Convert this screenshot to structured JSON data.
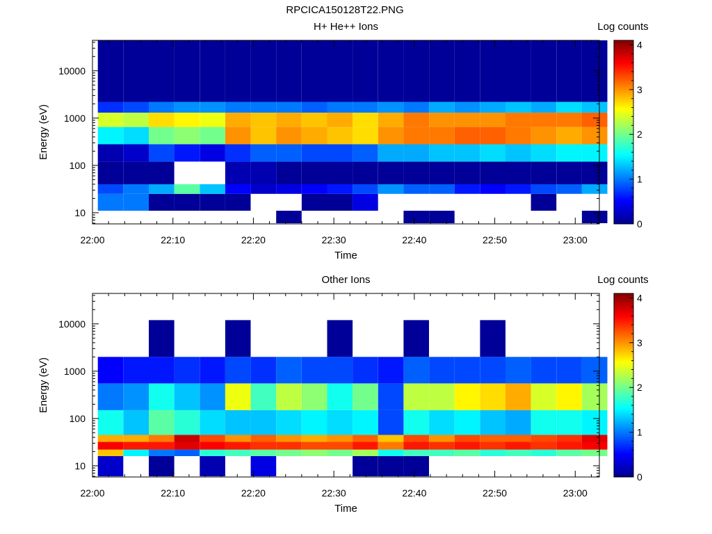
{
  "figure_title": "RPCICA150128T22.PNG",
  "chart_data": [
    {
      "type": "heatmap",
      "title": "H+ He++ Ions",
      "xlabel": "Time",
      "ylabel": "Energy (eV)",
      "colorbar_label": "Log counts",
      "colorbar_ticks": [
        "0",
        "1",
        "2",
        "3",
        "4"
      ],
      "colorbar_range": [
        0,
        4.1
      ],
      "x_ticks": [
        "22:00",
        "22:10",
        "22:20",
        "22:30",
        "22:40",
        "22:50",
        "23:00"
      ],
      "x_range_minutes": [
        0,
        63
      ],
      "y_scale": "log",
      "y_ticks": [
        "10",
        "100",
        "1000",
        "10000"
      ],
      "y_range": [
        5.8,
        44000
      ],
      "time_bins": [
        "22:02:15",
        "22:05:25",
        "22:08:35",
        "22:11:45",
        "22:14:55",
        "22:18:05",
        "22:21:15",
        "22:24:25",
        "22:27:35",
        "22:30:45",
        "22:33:55",
        "22:37:05",
        "22:40:15",
        "22:43:25",
        "22:46:35",
        "22:49:45",
        "22:52:55",
        "22:56:05",
        "22:59:15",
        "23:02:25"
      ],
      "energy_bands_eV": [
        {
          "low": 6,
          "high": 11,
          "values": [
            null,
            null,
            null,
            null,
            null,
            null,
            null,
            0.1,
            null,
            null,
            null,
            null,
            0.1,
            0.1,
            null,
            null,
            null,
            null,
            null,
            0.1
          ]
        },
        {
          "low": 11,
          "high": 25,
          "values": [
            1.0,
            1.0,
            0.1,
            0.1,
            0.1,
            0.1,
            null,
            null,
            0.1,
            0.1,
            0.4,
            null,
            null,
            null,
            null,
            null,
            null,
            0.1,
            null,
            null
          ]
        },
        {
          "low": 25,
          "high": 40,
          "values": [
            0.8,
            1.0,
            1.2,
            1.9,
            1.3,
            0.5,
            0.3,
            0.4,
            0.5,
            0.6,
            0.8,
            1.1,
            0.9,
            0.9,
            0.6,
            0.5,
            0.6,
            0.8,
            0.9,
            1.2
          ]
        },
        {
          "low": 40,
          "high": 120,
          "values": [
            0.1,
            0.1,
            0.1,
            null,
            null,
            0.2,
            0.2,
            0.1,
            0.1,
            0.1,
            0.1,
            0.1,
            0.1,
            0.1,
            0.1,
            0.1,
            0.1,
            0.1,
            0.1,
            0.1
          ]
        },
        {
          "low": 120,
          "high": 280,
          "values": [
            0.2,
            0.3,
            0.8,
            0.6,
            0.4,
            0.7,
            0.9,
            0.9,
            0.8,
            0.8,
            0.9,
            1.2,
            1.2,
            1.3,
            1.3,
            1.4,
            1.3,
            1.4,
            1.5,
            1.5
          ]
        },
        {
          "low": 280,
          "high": 650,
          "values": [
            1.5,
            1.4,
            2.0,
            2.1,
            2.0,
            3.0,
            2.8,
            3.0,
            2.9,
            2.8,
            2.7,
            3.0,
            3.1,
            3.1,
            3.2,
            3.2,
            3.1,
            3.0,
            2.9,
            3.0
          ]
        },
        {
          "low": 650,
          "high": 1300,
          "values": [
            2.4,
            2.3,
            2.7,
            2.6,
            2.5,
            2.9,
            2.8,
            2.9,
            2.8,
            2.9,
            2.7,
            2.9,
            3.1,
            3.0,
            3.0,
            3.0,
            3.1,
            3.1,
            3.1,
            3.2
          ]
        },
        {
          "low": 1300,
          "high": 2200,
          "values": [
            0.7,
            0.8,
            1.0,
            1.1,
            1.1,
            1.0,
            1.0,
            1.0,
            0.9,
            1.0,
            1.0,
            1.1,
            1.0,
            1.2,
            1.1,
            1.2,
            1.3,
            1.2,
            1.4,
            1.3
          ]
        },
        {
          "low": 2200,
          "high": 44000,
          "values": [
            0.1,
            0.1,
            0.1,
            0.1,
            0.1,
            0.1,
            0.1,
            0.1,
            0.1,
            0.1,
            0.1,
            0.1,
            0.1,
            0.1,
            0.1,
            0.1,
            0.1,
            0.1,
            0.1,
            0.1
          ]
        }
      ]
    },
    {
      "type": "heatmap",
      "title": "Other Ions",
      "xlabel": "Time",
      "ylabel": "Energy (eV)",
      "colorbar_label": "Log counts",
      "colorbar_ticks": [
        "0",
        "1",
        "2",
        "3",
        "4"
      ],
      "colorbar_range": [
        0,
        4.1
      ],
      "x_ticks": [
        "22:00",
        "22:10",
        "22:20",
        "22:30",
        "22:40",
        "22:50",
        "23:00"
      ],
      "x_range_minutes": [
        0,
        63
      ],
      "y_scale": "log",
      "y_ticks": [
        "10",
        "100",
        "1000",
        "10000"
      ],
      "y_range": [
        5.8,
        44000
      ],
      "time_bins": [
        "22:02:15",
        "22:05:25",
        "22:08:35",
        "22:11:45",
        "22:14:55",
        "22:18:05",
        "22:21:15",
        "22:24:25",
        "22:27:35",
        "22:30:45",
        "22:33:55",
        "22:37:05",
        "22:40:15",
        "22:43:25",
        "22:46:35",
        "22:49:45",
        "22:52:55",
        "22:56:05",
        "22:59:15",
        "23:02:25"
      ],
      "energy_bands_eV": [
        {
          "low": 6,
          "high": 16,
          "values": [
            0.3,
            null,
            0.1,
            null,
            0.2,
            null,
            0.4,
            null,
            null,
            null,
            0.1,
            0.1,
            0.1,
            null,
            null,
            null,
            null,
            null,
            null,
            null
          ]
        },
        {
          "low": 16,
          "high": 22,
          "values": [
            2.8,
            1.5,
            1.0,
            0.9,
            1.7,
            1.8,
            1.9,
            2.0,
            2.1,
            2.0,
            2.2,
            1.6,
            1.8,
            1.8,
            1.9,
            1.7,
            1.8,
            1.7,
            1.9,
            2.0
          ]
        },
        {
          "low": 22,
          "high": 32,
          "values": [
            3.6,
            3.5,
            3.5,
            3.7,
            3.6,
            3.5,
            3.4,
            3.4,
            3.3,
            3.3,
            3.5,
            3.1,
            3.5,
            3.4,
            3.5,
            3.4,
            3.5,
            3.4,
            3.5,
            3.6
          ]
        },
        {
          "low": 32,
          "high": 45,
          "values": [
            2.9,
            2.9,
            3.1,
            3.8,
            3.3,
            3.0,
            3.2,
            3.0,
            2.9,
            3.0,
            3.2,
            2.8,
            3.3,
            3.0,
            3.3,
            3.2,
            3.2,
            3.3,
            3.4,
            3.7
          ]
        },
        {
          "low": 45,
          "high": 150,
          "values": [
            1.6,
            1.3,
            1.9,
            1.7,
            1.4,
            1.3,
            1.3,
            1.4,
            1.5,
            1.4,
            1.5,
            0.8,
            1.6,
            1.4,
            1.5,
            1.3,
            1.2,
            1.6,
            1.6,
            1.5
          ]
        },
        {
          "low": 150,
          "high": 550,
          "values": [
            1.0,
            1.1,
            1.6,
            1.3,
            1.1,
            2.5,
            1.8,
            2.3,
            2.1,
            1.6,
            2.0,
            0.8,
            2.3,
            2.3,
            2.6,
            2.7,
            2.9,
            2.4,
            2.6,
            2.2
          ]
        },
        {
          "low": 550,
          "high": 2000,
          "values": [
            0.5,
            0.6,
            0.6,
            0.7,
            0.6,
            0.8,
            0.7,
            0.9,
            0.8,
            0.8,
            0.7,
            0.6,
            0.9,
            0.8,
            0.8,
            0.8,
            0.9,
            0.8,
            0.8,
            0.9
          ]
        },
        {
          "low": 2000,
          "high": 12000,
          "values": [
            null,
            null,
            0.1,
            null,
            null,
            0.1,
            null,
            null,
            null,
            0.1,
            null,
            null,
            0.1,
            null,
            null,
            0.1,
            null,
            null,
            null,
            null
          ]
        }
      ]
    }
  ]
}
